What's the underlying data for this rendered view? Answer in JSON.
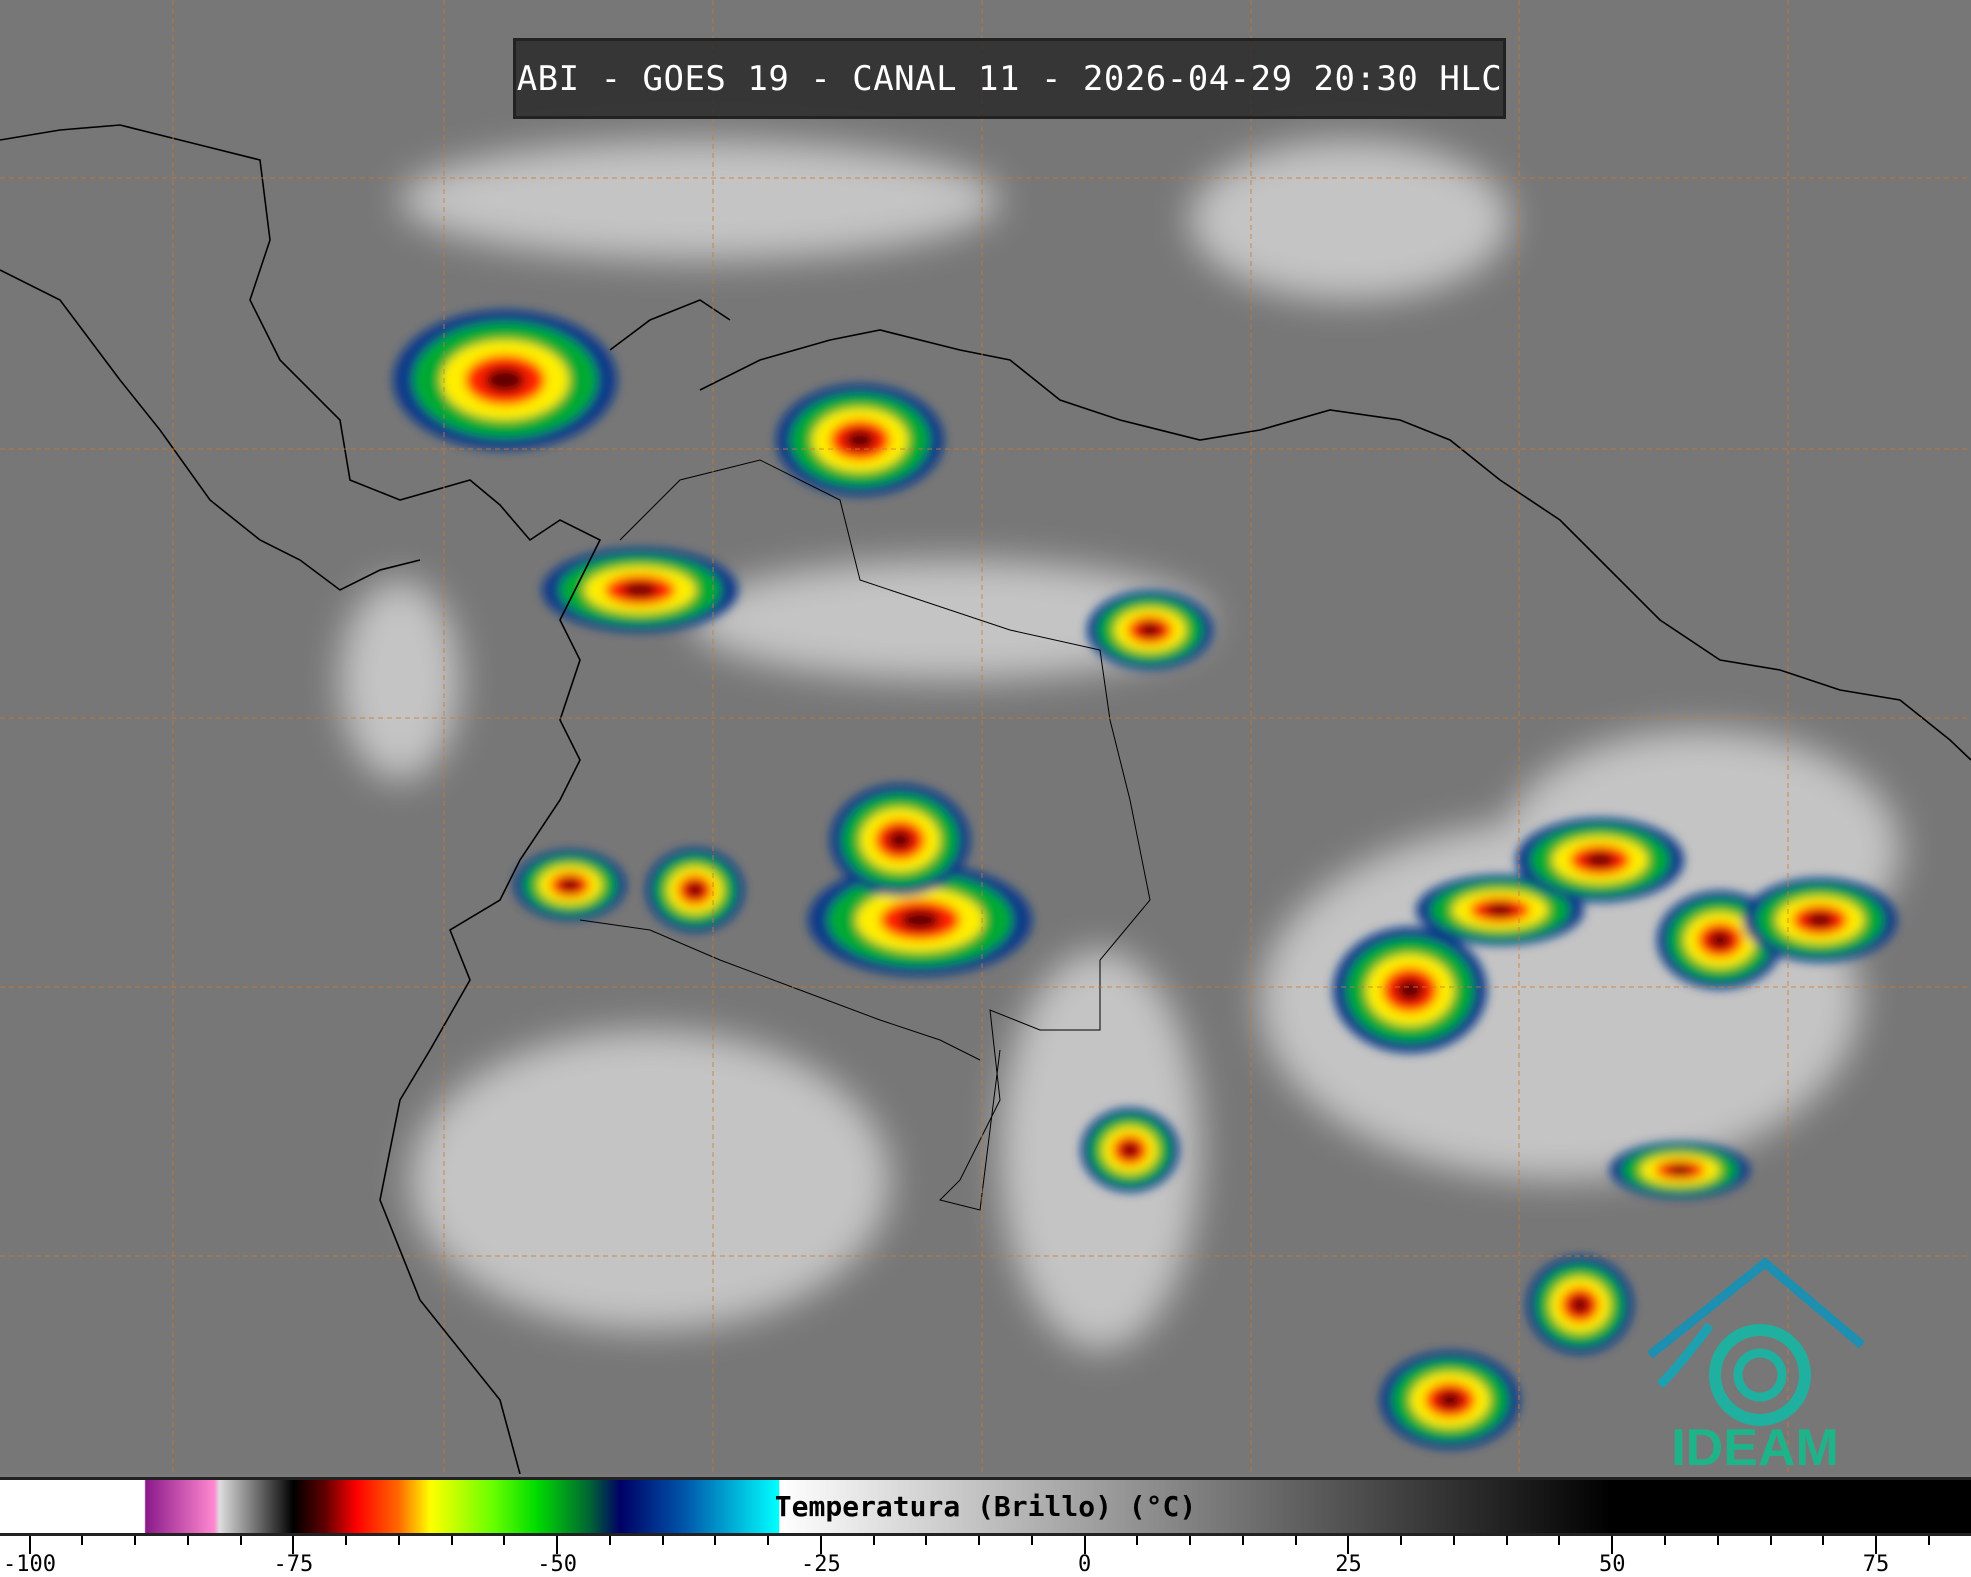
{
  "title": "ABI - GOES 19 - CANAL 11 - 2026-04-29 20:30 HLC",
  "colorbar": {
    "label": "Temperatura (Brillo) (°C)",
    "range": [
      -102.8,
      84
    ],
    "major_ticks": [
      "-100",
      "-75",
      "-50",
      "-25",
      "0",
      "25",
      "50",
      "75"
    ],
    "minor_tick_step": 5,
    "stops": [
      {
        "t": -102.8,
        "color": "#ffffff"
      },
      {
        "t": -89.1,
        "color": "#ffffff"
      },
      {
        "t": -89,
        "color": "#8a1a8a"
      },
      {
        "t": -82.5,
        "color": "#ff88d0"
      },
      {
        "t": -82,
        "color": "#dddddd"
      },
      {
        "t": -76,
        "color": "#222222"
      },
      {
        "t": -75,
        "color": "#000000"
      },
      {
        "t": -72,
        "color": "#600000"
      },
      {
        "t": -69,
        "color": "#ff0000"
      },
      {
        "t": -65,
        "color": "#ff6a00"
      },
      {
        "t": -62,
        "color": "#ffff00"
      },
      {
        "t": -56,
        "color": "#66ff00"
      },
      {
        "t": -52,
        "color": "#00dd00"
      },
      {
        "t": -47,
        "color": "#006633"
      },
      {
        "t": -44,
        "color": "#000066"
      },
      {
        "t": -38,
        "color": "#0055aa"
      },
      {
        "t": -29,
        "color": "#00ffff"
      },
      {
        "t": -28.9,
        "color": "#ffffff"
      },
      {
        "t": 50,
        "color": "#000000"
      },
      {
        "t": 84,
        "color": "#000000"
      }
    ]
  },
  "logo": {
    "text": "IDEAM",
    "color": "#1fb38a"
  },
  "graticule_color": "#d2782e"
}
